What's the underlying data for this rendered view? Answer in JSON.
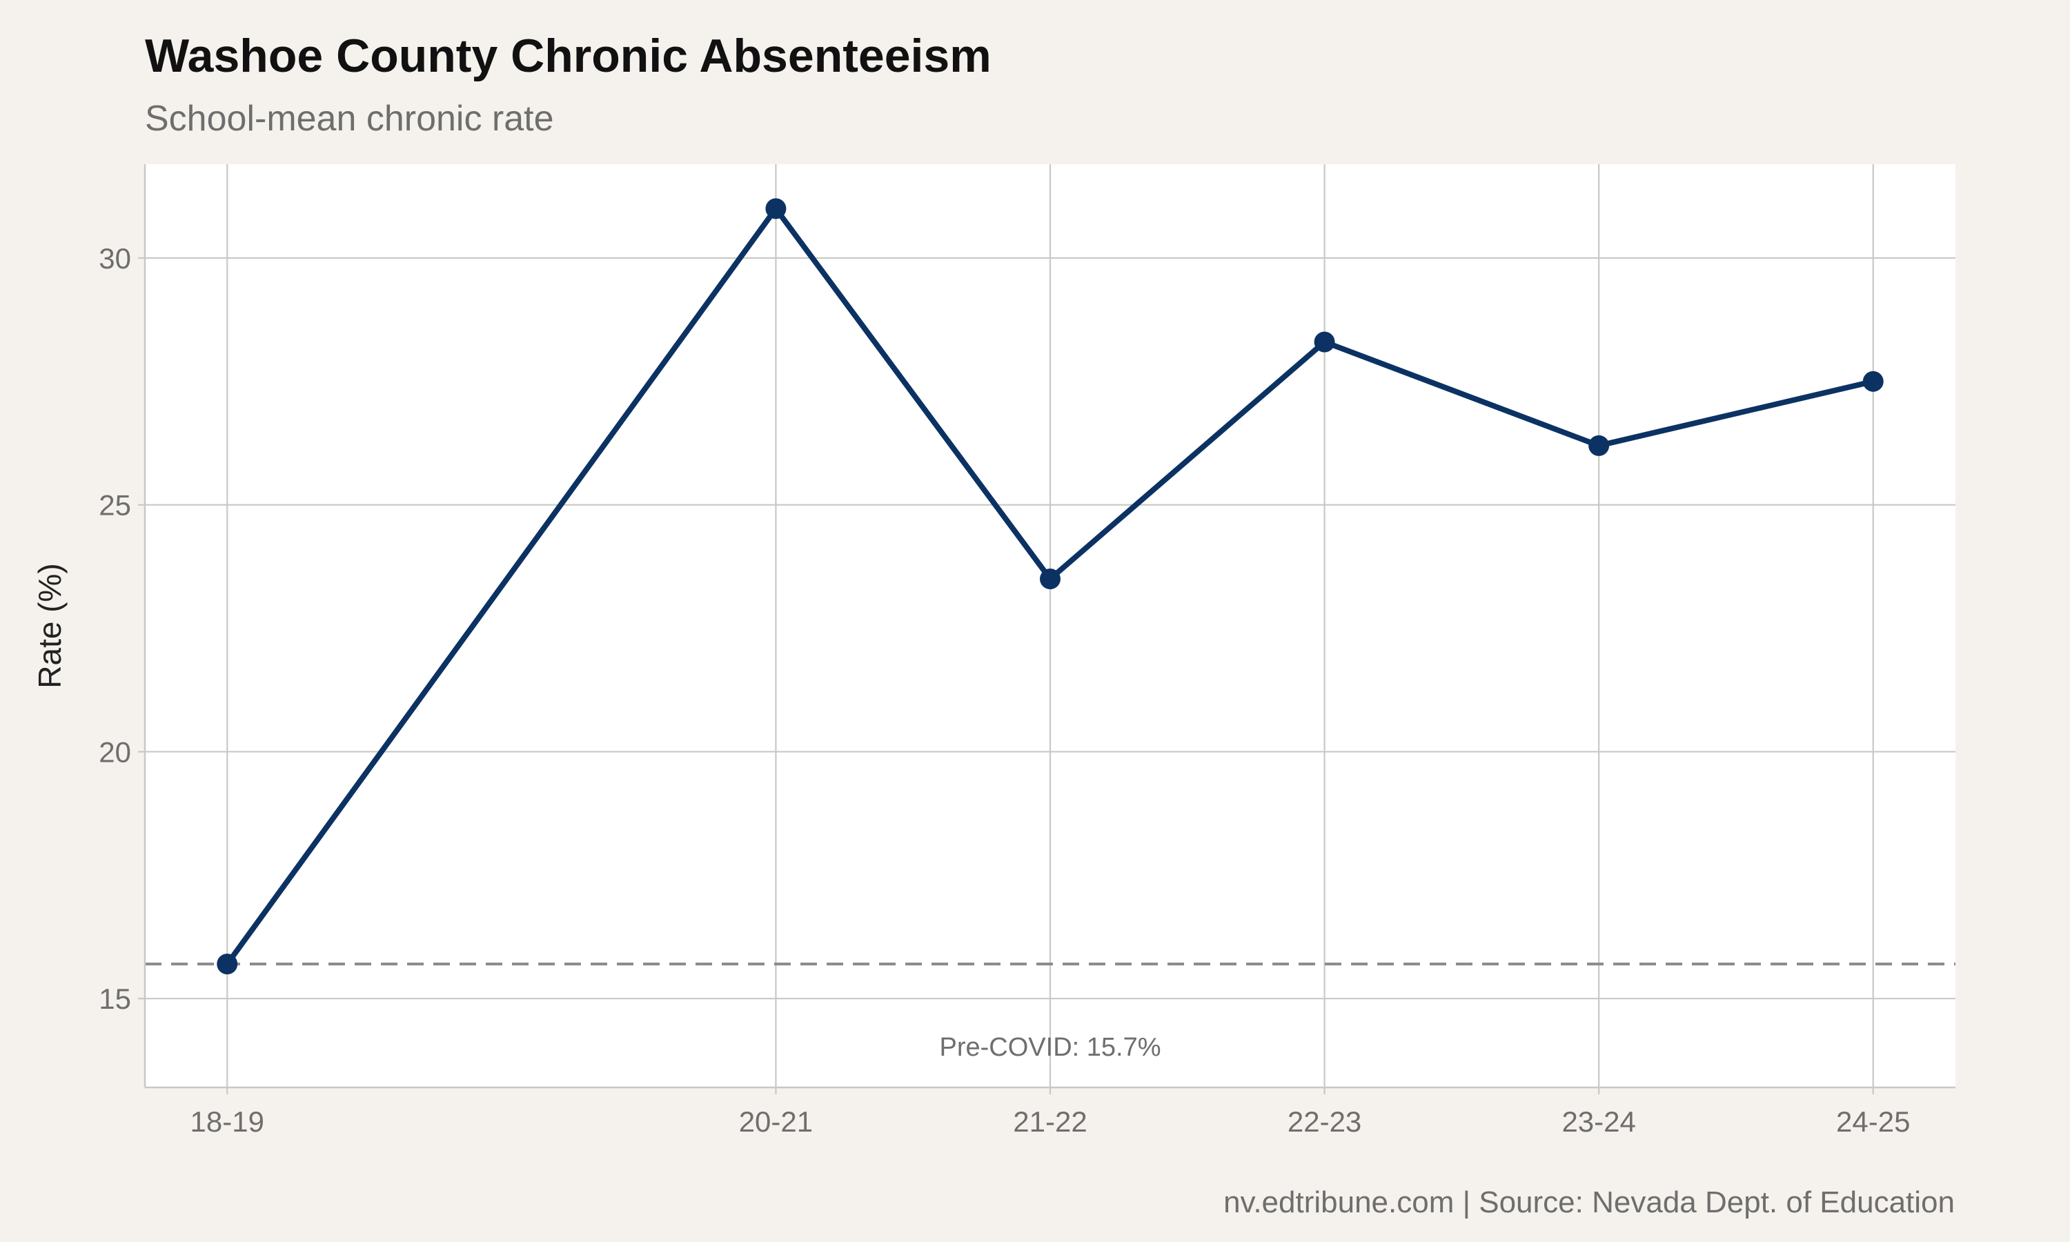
{
  "title": "Washoe County Chronic Absenteeism",
  "subtitle": "School-mean chronic rate",
  "caption": "nv.edtribune.com | Source: Nevada Dept. of Education",
  "colors": {
    "background": "#f5f2ed",
    "panel": "#ffffff",
    "series": "#0b3263",
    "grid": "#c8c8c4",
    "reference_line": "#8a8a8a"
  },
  "chart_data": {
    "type": "line",
    "title": "Washoe County Chronic Absenteeism",
    "subtitle": "School-mean chronic rate",
    "xlabel": "",
    "ylabel": "Rate (%)",
    "x": [
      "18-19",
      "20-21",
      "21-22",
      "22-23",
      "23-24",
      "24-25"
    ],
    "x_position": [
      2018,
      2020,
      2021,
      2022,
      2023,
      2024
    ],
    "x_range": [
      2017.7,
      2024.3
    ],
    "ylim": [
      13.2,
      31.9
    ],
    "yticks": [
      15,
      20,
      25,
      30
    ],
    "grid": true,
    "legend": "none",
    "series": [
      {
        "values": [
          15.7,
          31.0,
          23.5,
          28.3,
          26.2,
          27.5
        ]
      }
    ],
    "reference_line": {
      "value": 15.7,
      "style": "dashed",
      "label": "Pre-COVID: 15.7%"
    }
  }
}
